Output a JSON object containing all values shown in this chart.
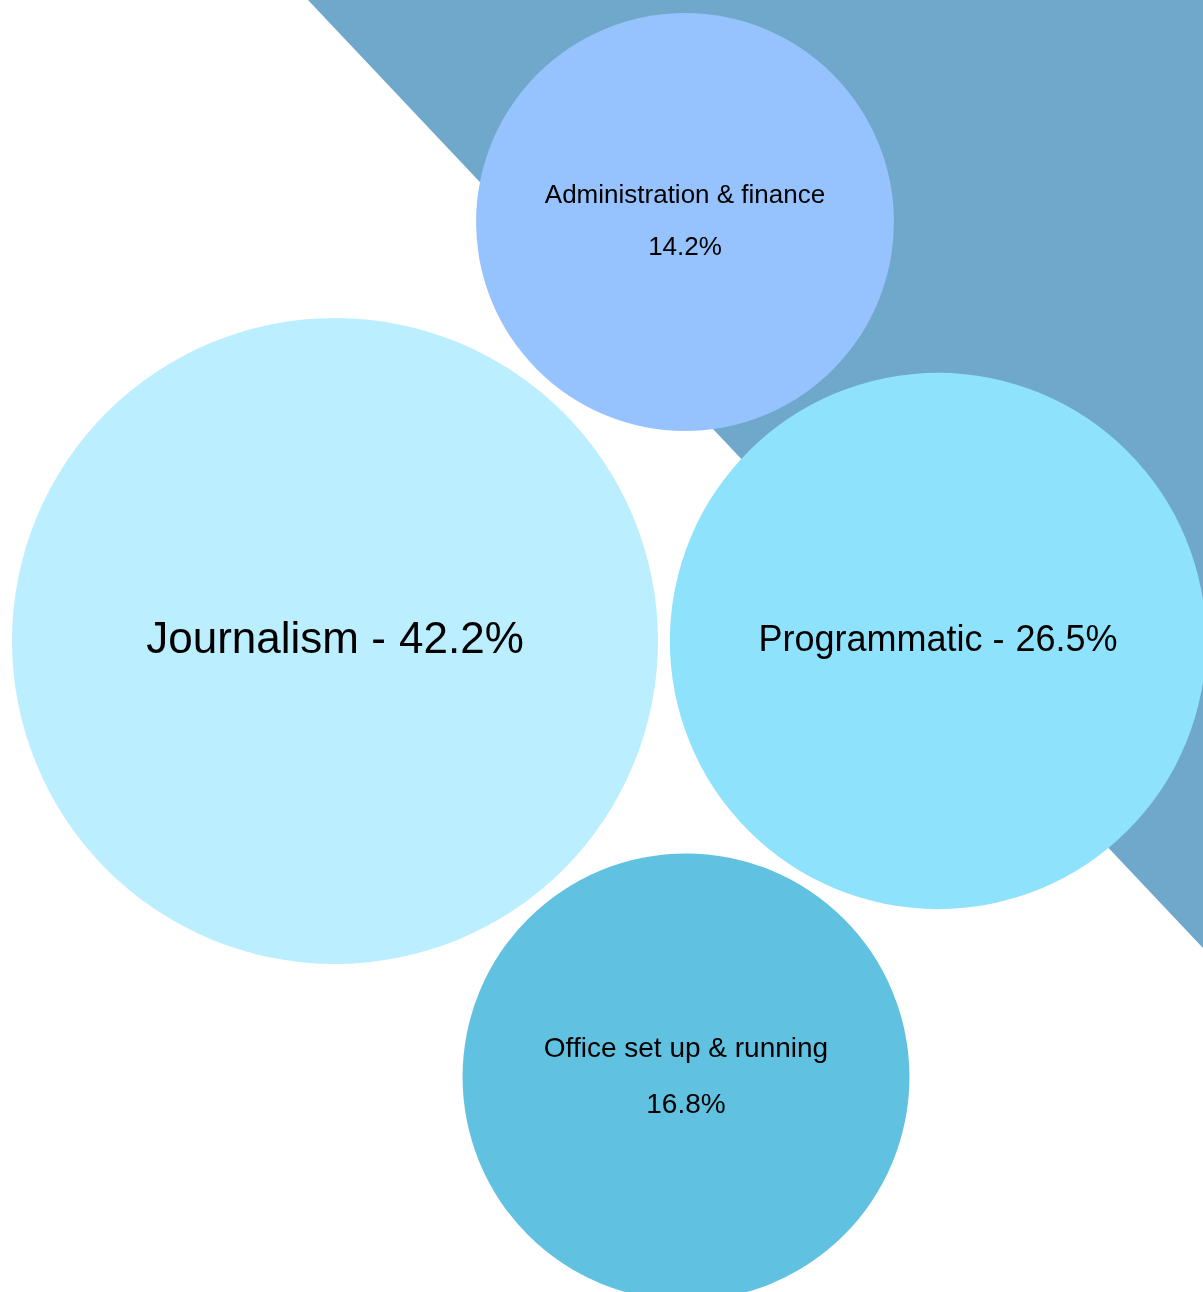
{
  "chart_data": {
    "type": "other",
    "categories": [
      "Journalism -",
      "Programmatic -",
      "Administration & finance",
      "Office set up & running"
    ],
    "values": [
      42.2,
      26.5,
      14.2,
      16.8
    ],
    "value_labels": [
      "42.2%",
      "26.5%",
      "14.2%",
      "16.8%"
    ],
    "colors": [
      "#bbeefe",
      "#8fe2fb",
      "#96c3fd",
      "#60c1e0"
    ],
    "data_labels": true
  }
}
